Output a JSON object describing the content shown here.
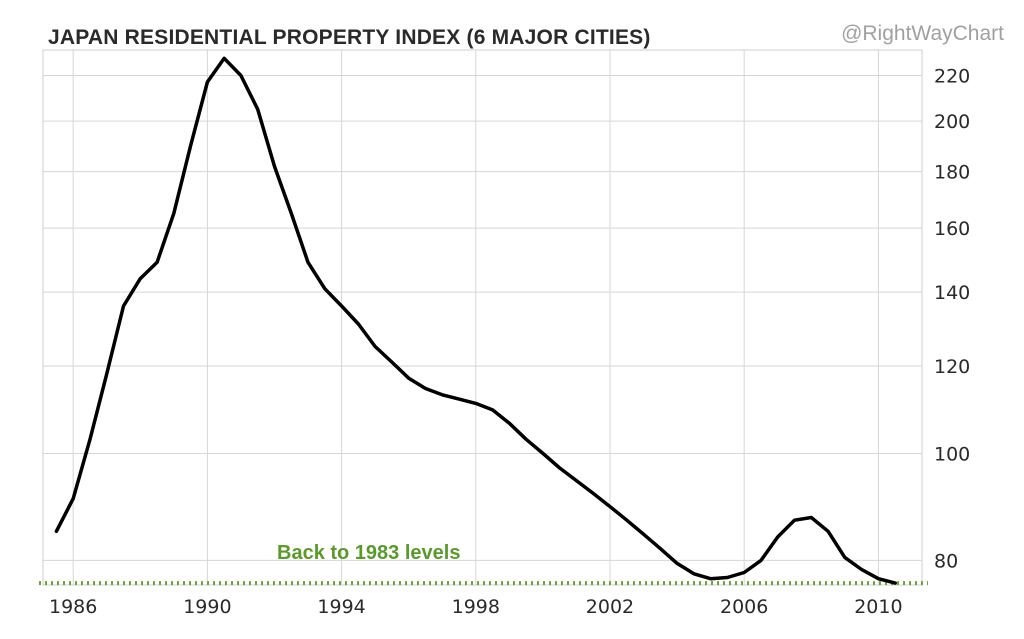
{
  "title": "JAPAN RESIDENTIAL PROPERTY INDEX (6 MAJOR CITIES)",
  "watermark": "@RightWayChart",
  "chart_data": {
    "type": "line",
    "title": "JAPAN RESIDENTIAL PROPERTY INDEX (6 MAJOR CITIES)",
    "xlabel": "",
    "ylabel": "",
    "y_scale": "log",
    "x_ticks": [
      1986,
      1990,
      1994,
      1998,
      2002,
      2006,
      2010
    ],
    "y_ticks": [
      80,
      100,
      120,
      140,
      160,
      180,
      200,
      220
    ],
    "xlim": [
      1985.1,
      2011.3
    ],
    "ylim": [
      76,
      232
    ],
    "grid": true,
    "y_axis_side": "right",
    "series": [
      {
        "color": "#000000",
        "x": [
          1985.5,
          1986,
          1986.5,
          1987,
          1987.5,
          1988,
          1988.5,
          1989,
          1989.5,
          1990,
          1990.5,
          1991,
          1991.5,
          1992,
          1992.5,
          1993,
          1993.5,
          1994,
          1994.5,
          1995,
          1995.5,
          1996,
          1996.5,
          1997,
          1997.5,
          1998,
          1998.5,
          1999,
          1999.5,
          2000,
          2000.5,
          2001,
          2001.5,
          2002,
          2002.5,
          2003,
          2003.5,
          2004,
          2004.5,
          2005,
          2005.5,
          2006,
          2006.5,
          2007,
          2007.5,
          2008,
          2008.5,
          2009,
          2009.5,
          2010,
          2010.5
        ],
        "y": [
          85,
          91,
          103,
          118,
          136,
          144,
          149,
          165,
          190,
          217,
          228,
          220,
          205,
          182,
          165,
          149,
          141,
          136,
          131,
          125,
          121,
          117,
          114.5,
          113,
          112,
          111,
          109.5,
          106.5,
          103,
          100,
          97,
          94.5,
          92,
          89.5,
          87,
          84.5,
          82,
          79.5,
          77.8,
          77,
          77.2,
          78,
          80,
          84,
          87,
          87.5,
          85,
          80.5,
          78.5,
          77,
          76.3
        ]
      }
    ],
    "reference_line": {
      "y": 76.3,
      "color": "#6aa630",
      "style": "dotted",
      "label": "Back to 1983 levels"
    }
  }
}
